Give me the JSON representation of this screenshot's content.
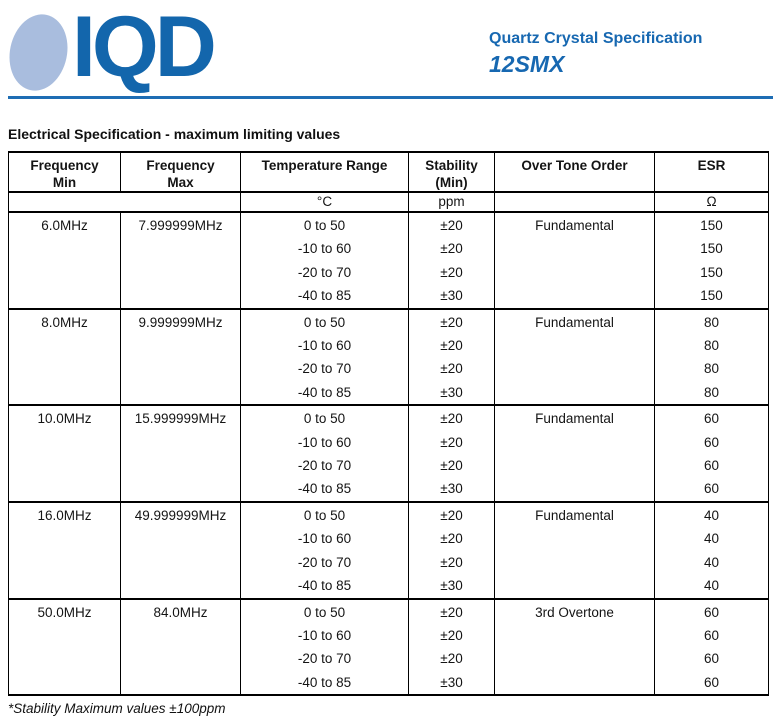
{
  "header": {
    "logo_text": "IQD",
    "doc_type": "Quartz Crystal Specification",
    "model": "12SMX"
  },
  "colors": {
    "brand_blue": "#1768b1",
    "logo_text_blue": "#1366ac",
    "logo_ellipse_blue": "#a9bdde",
    "rule_blue": "#1e6db4"
  },
  "section_title": "Electrical Specification - maximum limiting values",
  "table": {
    "columns": [
      {
        "line1": "Frequency",
        "line2": "Min"
      },
      {
        "line1": "Frequency",
        "line2": "Max"
      },
      {
        "line1": "Temperature Range",
        "line2": ""
      },
      {
        "line1": "Stability",
        "line2": "(Min)"
      },
      {
        "line1": "Over Tone Order",
        "line2": ""
      },
      {
        "line1": "ESR",
        "line2": ""
      }
    ],
    "units": {
      "temperature": "°C",
      "stability": "ppm",
      "esr": "Ω"
    },
    "sections": [
      {
        "freq_min": "6.0MHz",
        "freq_max": "7.999999MHz",
        "temps": [
          "0 to 50",
          "-10 to 60",
          "-20 to 70",
          "-40 to 85"
        ],
        "stabilities": [
          "±20",
          "±20",
          "±20",
          "±30"
        ],
        "tone": "Fundamental",
        "esr": [
          "150",
          "150",
          "150",
          "150"
        ]
      },
      {
        "freq_min": "8.0MHz",
        "freq_max": "9.999999MHz",
        "temps": [
          "0 to 50",
          "-10 to 60",
          "-20 to 70",
          "-40 to 85"
        ],
        "stabilities": [
          "±20",
          "±20",
          "±20",
          "±30"
        ],
        "tone": "Fundamental",
        "esr": [
          "80",
          "80",
          "80",
          "80"
        ]
      },
      {
        "freq_min": "10.0MHz",
        "freq_max": "15.999999MHz",
        "temps": [
          "0 to 50",
          "-10 to 60",
          "-20 to 70",
          "-40 to 85"
        ],
        "stabilities": [
          "±20",
          "±20",
          "±20",
          "±30"
        ],
        "tone": "Fundamental",
        "esr": [
          "60",
          "60",
          "60",
          "60"
        ]
      },
      {
        "freq_min": "16.0MHz",
        "freq_max": "49.999999MHz",
        "temps": [
          "0 to 50",
          "-10 to 60",
          "-20 to 70",
          "-40 to 85"
        ],
        "stabilities": [
          "±20",
          "±20",
          "±20",
          "±30"
        ],
        "tone": "Fundamental",
        "esr": [
          "40",
          "40",
          "40",
          "40"
        ]
      },
      {
        "freq_min": "50.0MHz",
        "freq_max": "84.0MHz",
        "temps": [
          "0 to 50",
          "-10 to 60",
          "-20 to 70",
          "-40 to 85"
        ],
        "stabilities": [
          "±20",
          "±20",
          "±20",
          "±30"
        ],
        "tone": "3rd Overtone",
        "esr": [
          "60",
          "60",
          "60",
          "60"
        ]
      }
    ]
  },
  "footnote": "*Stability Maximum values ±100ppm"
}
